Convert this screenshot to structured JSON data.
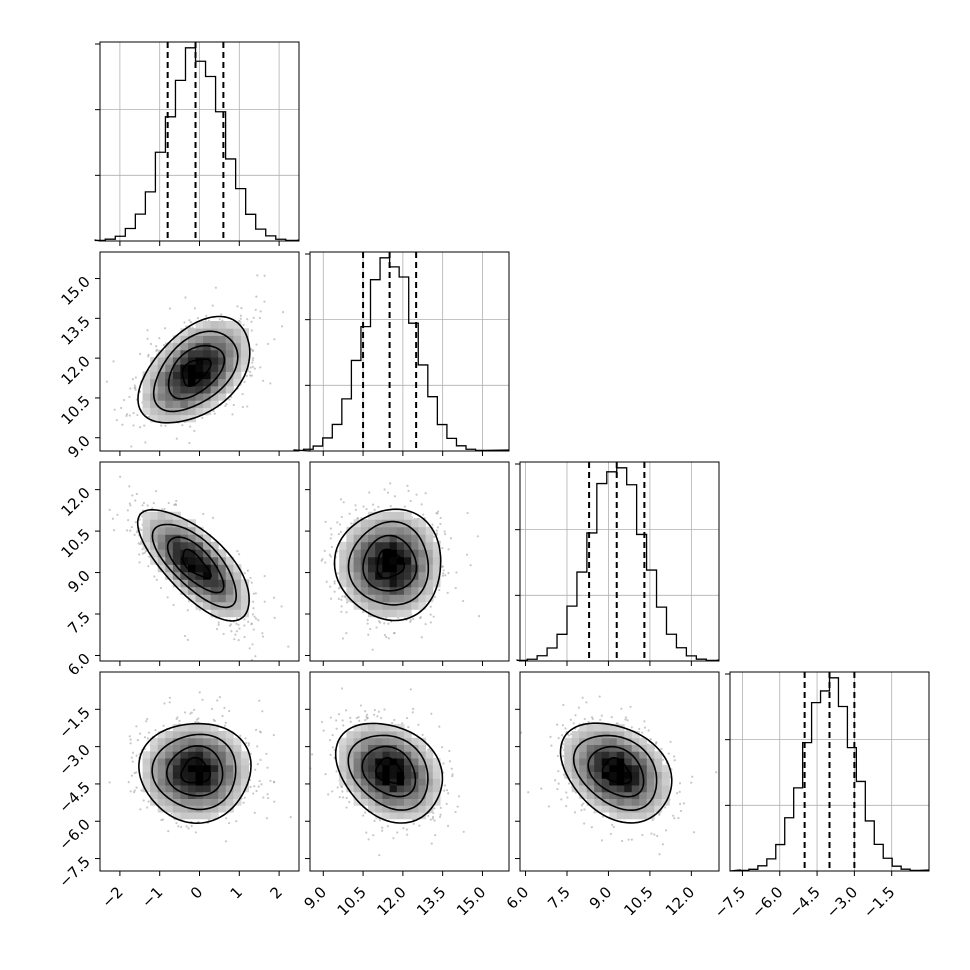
{
  "chart_data": {
    "type": "corner",
    "parameters": [
      {
        "index": 0,
        "median": -0.1,
        "q16": -0.8,
        "q84": 0.6,
        "sigma": 0.7,
        "range": [
          -2.5,
          2.5
        ],
        "ticks": [
          -2,
          -1,
          0,
          1,
          2
        ],
        "tick_labels": [
          "−2",
          "−1",
          "0",
          "1",
          "2"
        ]
      },
      {
        "index": 1,
        "median": 11.5,
        "q16": 10.5,
        "q84": 12.5,
        "sigma": 1.0,
        "range": [
          8.5,
          16.0
        ],
        "ticks": [
          9.0,
          10.5,
          12.0,
          13.5,
          15.0
        ],
        "tick_labels": [
          "9.0",
          "10.5",
          "12.0",
          "13.5",
          "15.0"
        ]
      },
      {
        "index": 2,
        "median": 9.3,
        "q16": 8.3,
        "q84": 10.3,
        "sigma": 1.0,
        "range": [
          5.8,
          13.0
        ],
        "ticks": [
          6.0,
          7.5,
          9.0,
          10.5,
          12.0
        ],
        "tick_labels": [
          "6.0",
          "7.5",
          "9.0",
          "10.5",
          "12.0"
        ]
      },
      {
        "index": 3,
        "median": -4.0,
        "q16": -5.0,
        "q84": -3.0,
        "sigma": 1.0,
        "range": [
          -8.0,
          0.0
        ],
        "ticks": [
          -7.5,
          -6.0,
          -4.5,
          -3.0,
          -1.5
        ],
        "tick_labels": [
          "−7.5",
          "−6.0",
          "−4.5",
          "−3.0",
          "−1.5"
        ]
      }
    ],
    "correlations": [
      {
        "x": 0,
        "y": 1,
        "rho": 0.45
      },
      {
        "x": 0,
        "y": 2,
        "rho": -0.7
      },
      {
        "x": 1,
        "y": 2,
        "rho": 0.0
      },
      {
        "x": 0,
        "y": 3,
        "rho": 0.0
      },
      {
        "x": 1,
        "y": 3,
        "rho": -0.25
      },
      {
        "x": 2,
        "y": 3,
        "rho": -0.3
      }
    ],
    "histogram_bins": 20,
    "contour_levels_sigma": [
      0.5,
      1.0,
      1.5,
      2.0
    ],
    "quantiles": [
      0.16,
      0.5,
      0.84
    ],
    "grid": true,
    "title": "",
    "colors": {
      "ink": "#000000",
      "scatter": "#9a9a9a",
      "grid": "#b0b0b0",
      "background": "#ffffff"
    }
  }
}
